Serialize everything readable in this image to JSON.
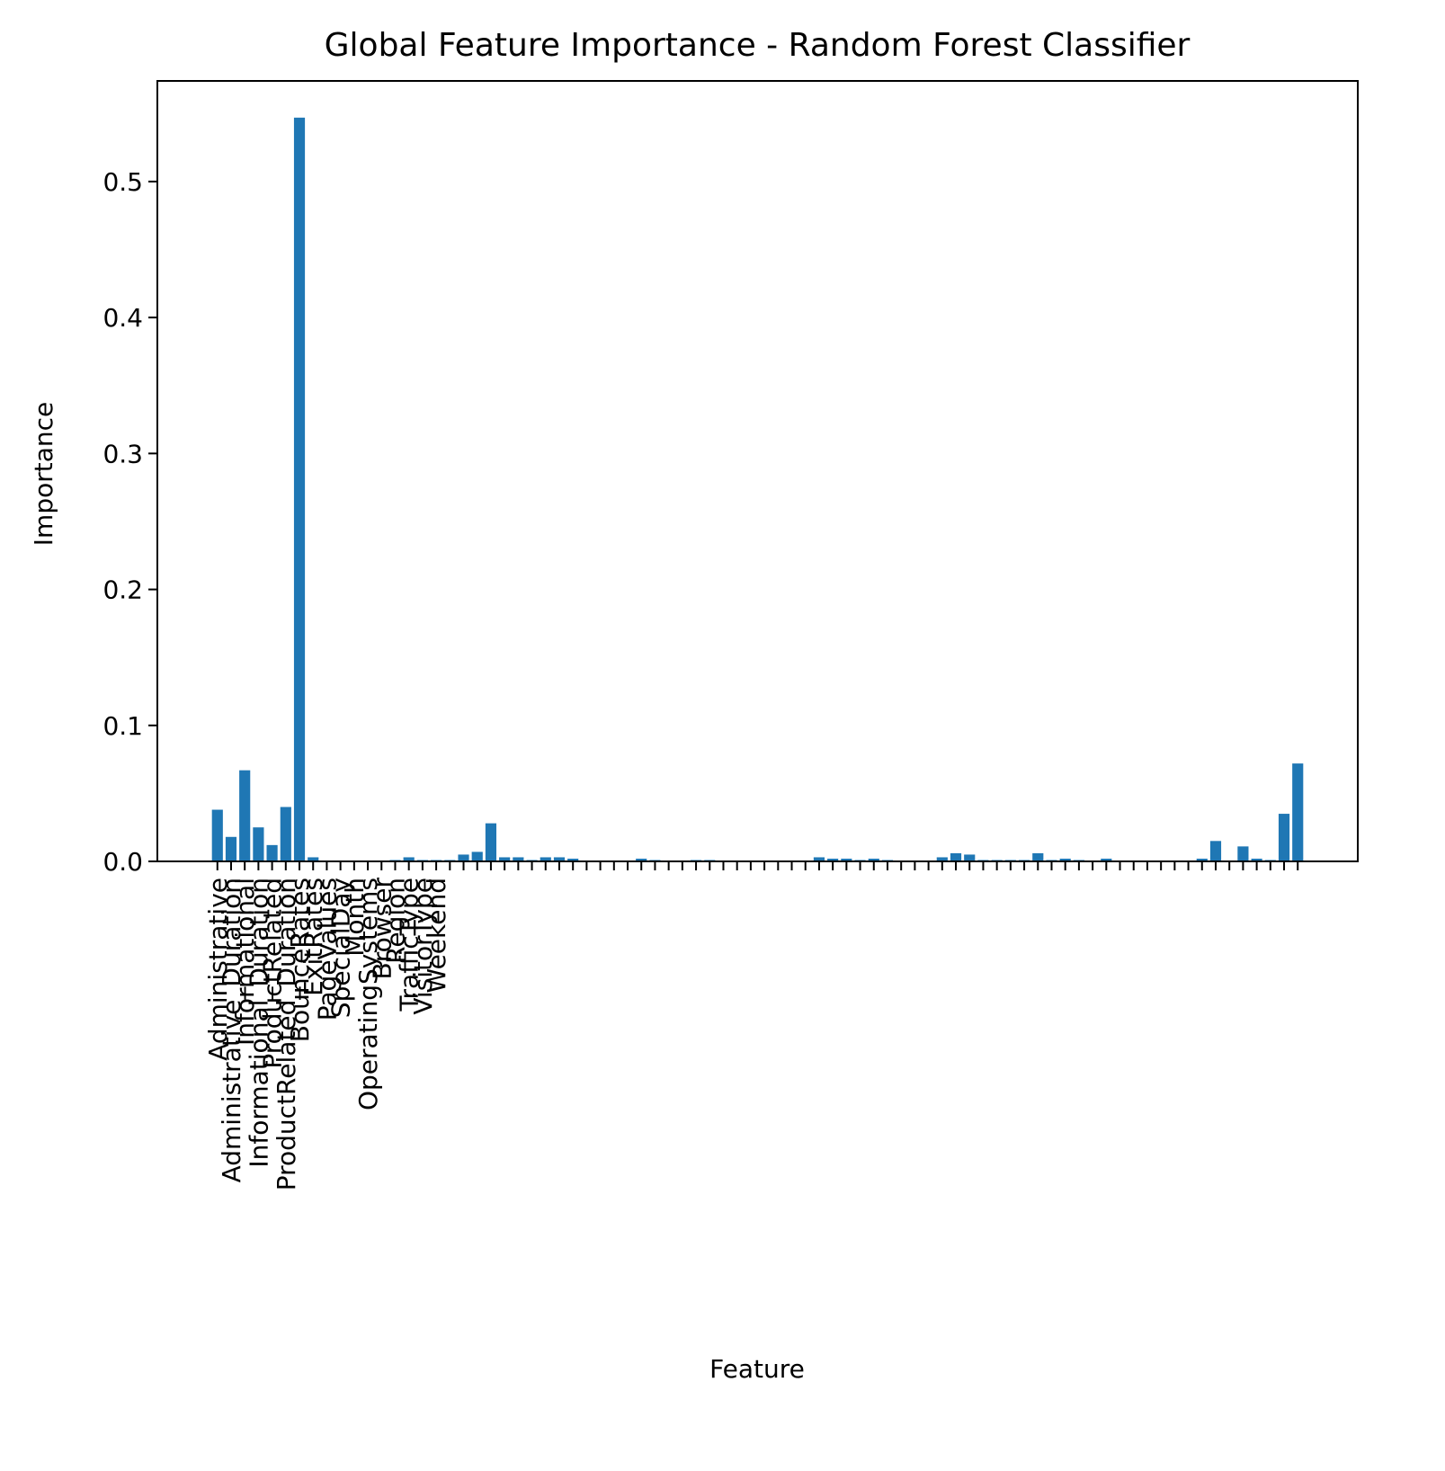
{
  "chart_data": {
    "type": "bar",
    "title": "Global Feature Importance - Random Forest Classifier",
    "x_label": "Feature",
    "y_label": "Importance",
    "categories": [
      "Administrative",
      "Administrative_Duration",
      "Informational",
      "Informational_Duration",
      "ProductRelated",
      "ProductRelated_Duration",
      "BounceRates",
      "ExitRates",
      "PageValues",
      "SpecialDay",
      "Month",
      "OperatingSystems",
      "Browser",
      "Region",
      "TrafficType",
      "VisitorType",
      "Weekend",
      null,
      null,
      null,
      null,
      null,
      null,
      null,
      null,
      null,
      null,
      null,
      null,
      null,
      null,
      null,
      null,
      null,
      null,
      null,
      null,
      null,
      null,
      null,
      null,
      null,
      null,
      null,
      null,
      null,
      null,
      null,
      null,
      null,
      null,
      null,
      null,
      null,
      null,
      null,
      null,
      null,
      null,
      null,
      null,
      null,
      null,
      null,
      null,
      null,
      null,
      null,
      null,
      null,
      null,
      null,
      null,
      null,
      null,
      null,
      null,
      null,
      null,
      null
    ],
    "values": [
      0.038,
      0.018,
      0.067,
      0.025,
      0.012,
      0.04,
      0.547,
      0.003,
      0,
      0,
      0,
      0,
      0,
      0.001,
      0.003,
      0.001,
      0.001,
      0.001,
      0.005,
      0.007,
      0.028,
      0.003,
      0.003,
      0.001,
      0.003,
      0.003,
      0.002,
      0,
      0,
      0,
      0,
      0.002,
      0.001,
      0,
      0,
      0.001,
      0.001,
      0,
      0,
      0,
      0,
      0,
      0,
      0,
      0.003,
      0.002,
      0.002,
      0.001,
      0.002,
      0.001,
      0,
      0,
      0,
      0.003,
      0.006,
      0.005,
      0.001,
      0.001,
      0.001,
      0.001,
      0.006,
      0.001,
      0.002,
      0.001,
      0,
      0.002,
      0,
      0,
      0,
      0,
      0,
      0,
      0.002,
      0.015,
      0,
      0.011,
      0.002,
      0.001,
      0.035,
      0.072
    ],
    "color": "#1f77b4",
    "ylim": [
      0,
      0.574
    ],
    "yticks": [
      {
        "value": 0,
        "label": "0.0"
      },
      0.1,
      0.2,
      0.3,
      0.4,
      0.5
    ],
    "grid": false
  }
}
